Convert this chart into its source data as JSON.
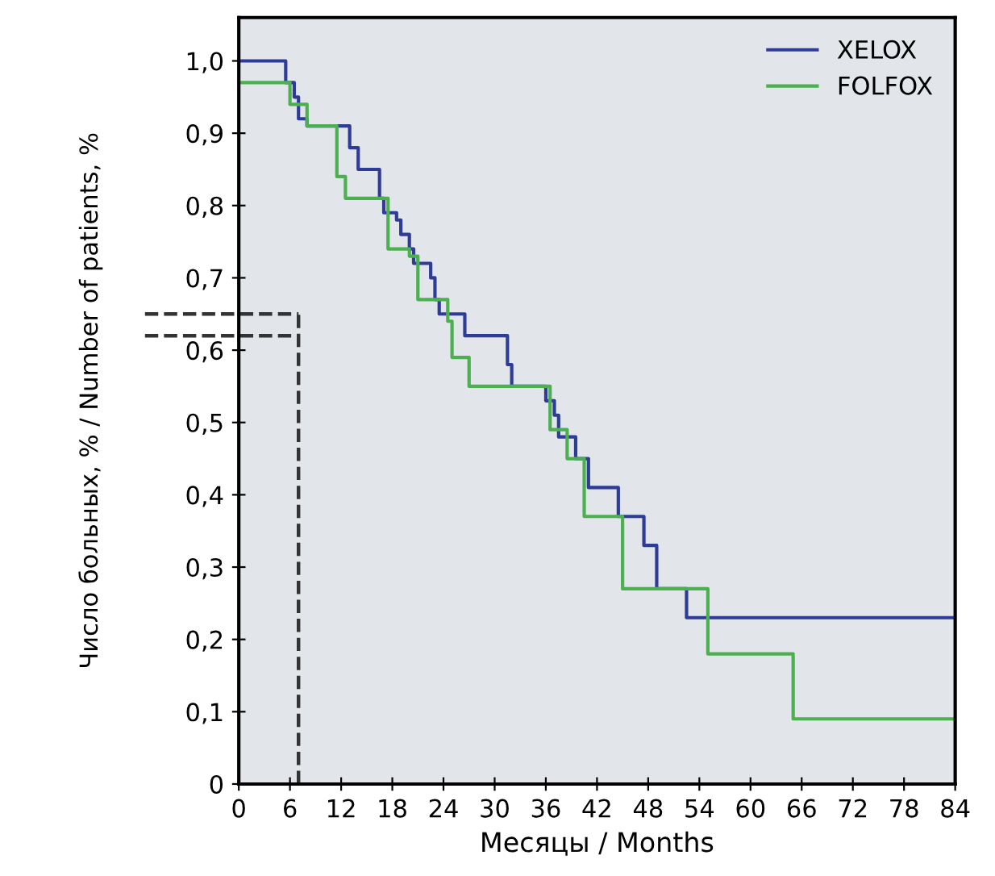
{
  "chart_data": {
    "type": "step",
    "xlabel": "Месяцы / Months",
    "ylabel": "Число больных, % / Number of patients, %",
    "xlim": [
      0,
      84
    ],
    "xticks": [
      0,
      6,
      12,
      18,
      24,
      30,
      36,
      42,
      48,
      54,
      60,
      66,
      72,
      78,
      84
    ],
    "ylim": [
      0,
      1.06
    ],
    "yticks": [
      {
        "value": 0,
        "label": "0"
      },
      {
        "value": 0.1,
        "label": "0,1"
      },
      {
        "value": 0.2,
        "label": "0,2"
      },
      {
        "value": 0.3,
        "label": "0,3"
      },
      {
        "value": 0.4,
        "label": "0,4"
      },
      {
        "value": 0.5,
        "label": "0,5"
      },
      {
        "value": 0.6,
        "label": "0,6"
      },
      {
        "value": 0.7,
        "label": "0,7"
      },
      {
        "value": 0.8,
        "label": "0,8"
      },
      {
        "value": 0.9,
        "label": "0,9"
      },
      {
        "value": 1.0,
        "label": "1,0"
      }
    ],
    "grid": false,
    "legend": "top right",
    "line_style": "solid",
    "series": [
      {
        "name": "XELOX",
        "color": "#2e3c96",
        "x": [
          0,
          5.5,
          6.5,
          7,
          8,
          13,
          14,
          16.5,
          17,
          18.5,
          19,
          20,
          20.5,
          22.5,
          23,
          23.5,
          26.5,
          31.5,
          32,
          36,
          37,
          37.5,
          39.5,
          41,
          44.5,
          47.5,
          49,
          52.5,
          84
        ],
        "values": [
          1.0,
          0.97,
          0.95,
          0.92,
          0.91,
          0.88,
          0.85,
          0.81,
          0.79,
          0.78,
          0.76,
          0.74,
          0.72,
          0.7,
          0.67,
          0.65,
          0.62,
          0.58,
          0.55,
          0.53,
          0.51,
          0.48,
          0.45,
          0.41,
          0.37,
          0.33,
          0.27,
          0.23,
          0.23
        ]
      },
      {
        "name": "FOLFOX",
        "color": "#4caf50",
        "x": [
          0,
          6,
          8,
          11.5,
          12.5,
          17.5,
          20,
          21,
          24.5,
          25,
          27,
          36.5,
          38.5,
          40.5,
          45,
          55,
          65,
          84
        ],
        "values": [
          0.97,
          0.94,
          0.91,
          0.84,
          0.81,
          0.74,
          0.73,
          0.67,
          0.64,
          0.59,
          0.55,
          0.49,
          0.45,
          0.37,
          0.27,
          0.18,
          0.09,
          0.09
        ]
      }
    ],
    "ref_lines": [
      {
        "axis": "y",
        "value": 0.65,
        "color": "#333333",
        "line_style": "dashed"
      },
      {
        "axis": "y",
        "value": 0.62,
        "color": "#333333",
        "line_style": "dashed"
      },
      {
        "axis": "x",
        "value": 7,
        "color": "#333333",
        "line_style": "dashed"
      }
    ]
  }
}
